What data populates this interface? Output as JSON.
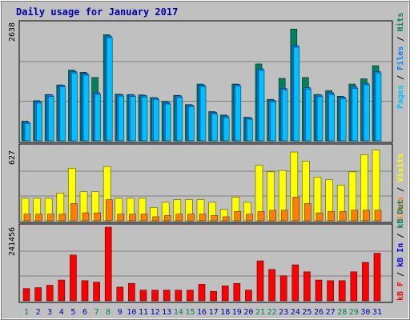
{
  "title": "Daily usage for January 2017",
  "colors": {
    "background": "#c0c0c0",
    "panel": "#c0c0c0",
    "title": "#0000aa",
    "hits": "#00805c",
    "files": "#0080ff",
    "pages": "#00c0ff",
    "visits": "#ffff00",
    "sites": "#ff8000",
    "kbin": "#0000ff",
    "kbf": "#ff0000",
    "weekend_label": "#00805c",
    "weekday_label": "#0000aa"
  },
  "chart_data": [
    {
      "type": "bar",
      "title": "Daily usage for January 2017",
      "ymax_label": "2638",
      "ymax": 2638,
      "legend": [
        {
          "key": "pages",
          "label": "Pages"
        },
        {
          "key": "files",
          "label": "Files"
        },
        {
          "key": "hits",
          "label": "Hits"
        }
      ],
      "legend_separator": " / ",
      "categories": [
        "1",
        "2",
        "3",
        "4",
        "5",
        "6",
        "7",
        "8",
        "9",
        "10",
        "11",
        "12",
        "13",
        "14",
        "15",
        "16",
        "17",
        "18",
        "19",
        "20",
        "21",
        "22",
        "23",
        "24",
        "25",
        "26",
        "27",
        "28",
        "29",
        "30",
        "31"
      ],
      "series": [
        {
          "name": "Hits",
          "key": "hits",
          "values": [
            450,
            920,
            1060,
            1280,
            1620,
            1570,
            1450,
            2430,
            1070,
            1060,
            1050,
            990,
            900,
            1040,
            830,
            1300,
            670,
            590,
            1300,
            540,
            1760,
            950,
            1430,
            2560,
            1450,
            1060,
            1150,
            1020,
            1300,
            1420,
            1720
          ]
        },
        {
          "name": "Files",
          "key": "files",
          "values": [
            430,
            900,
            1050,
            1270,
            1590,
            1540,
            1100,
            2400,
            1060,
            1050,
            1040,
            980,
            880,
            1030,
            820,
            1280,
            650,
            570,
            1290,
            530,
            1650,
            930,
            1200,
            2180,
            1220,
            1050,
            1100,
            1000,
            1240,
            1320,
            1590
          ]
        },
        {
          "name": "Pages",
          "key": "pages",
          "values": [
            200,
            520,
            560,
            600,
            620,
            640,
            470,
            800,
            580,
            540,
            520,
            500,
            450,
            520,
            400,
            560,
            320,
            300,
            560,
            280,
            800,
            480,
            700,
            900,
            700,
            540,
            560,
            520,
            600,
            700,
            760
          ]
        }
      ]
    },
    {
      "type": "bar",
      "ymax_label": "627",
      "ymax": 627,
      "legend": [
        {
          "key": "visits",
          "label": "Visits"
        },
        {
          "key": "sites",
          "label": "Sites"
        }
      ],
      "legend_separator": " / ",
      "categories": [
        "1",
        "2",
        "3",
        "4",
        "5",
        "6",
        "7",
        "8",
        "9",
        "10",
        "11",
        "12",
        "13",
        "14",
        "15",
        "16",
        "17",
        "18",
        "19",
        "20",
        "21",
        "22",
        "23",
        "24",
        "25",
        "26",
        "27",
        "28",
        "29",
        "30",
        "31"
      ],
      "series": [
        {
          "name": "Visits",
          "key": "visits",
          "values": [
            196,
            196,
            196,
            242,
            458,
            253,
            253,
            472,
            196,
            196,
            196,
            115,
            161,
            184,
            184,
            184,
            161,
            99,
            207,
            161,
            484,
            426,
            438,
            599,
            519,
            380,
            357,
            311,
            426,
            576,
            616
          ]
        },
        {
          "name": "Sites",
          "key": "sites",
          "values": [
            58,
            58,
            58,
            58,
            150,
            69,
            69,
            184,
            58,
            58,
            58,
            35,
            46,
            58,
            58,
            58,
            46,
            35,
            81,
            58,
            81,
            92,
            92,
            207,
            150,
            69,
            81,
            81,
            92,
            92,
            92
          ]
        }
      ]
    },
    {
      "type": "bar",
      "ymax_label": "241456",
      "ymax": 241456,
      "legend": [
        {
          "key": "kbf",
          "label": "kB F"
        },
        {
          "key": "kbin",
          "label": "kB In"
        },
        {
          "key": "kbout",
          "label": "kB Out"
        }
      ],
      "legend_separator": " / ",
      "categories": [
        "1",
        "2",
        "3",
        "4",
        "5",
        "6",
        "7",
        "8",
        "9",
        "10",
        "11",
        "12",
        "13",
        "14",
        "15",
        "16",
        "17",
        "18",
        "19",
        "20",
        "21",
        "22",
        "23",
        "24",
        "25",
        "26",
        "27",
        "28",
        "29",
        "30",
        "31"
      ],
      "series": [
        {
          "name": "kB F",
          "key": "kbf",
          "values": [
            40000,
            43000,
            51000,
            68000,
            150000,
            66000,
            61000,
            241456,
            45000,
            57000,
            35000,
            35000,
            35000,
            35000,
            35000,
            54000,
            31000,
            49000,
            57000,
            35000,
            131000,
            103000,
            82000,
            118000,
            95000,
            68000,
            66000,
            66000,
            95000,
            126000,
            156000
          ]
        }
      ]
    }
  ],
  "weekend_days": [
    1,
    7,
    8,
    14,
    15,
    21,
    22,
    28,
    29
  ]
}
